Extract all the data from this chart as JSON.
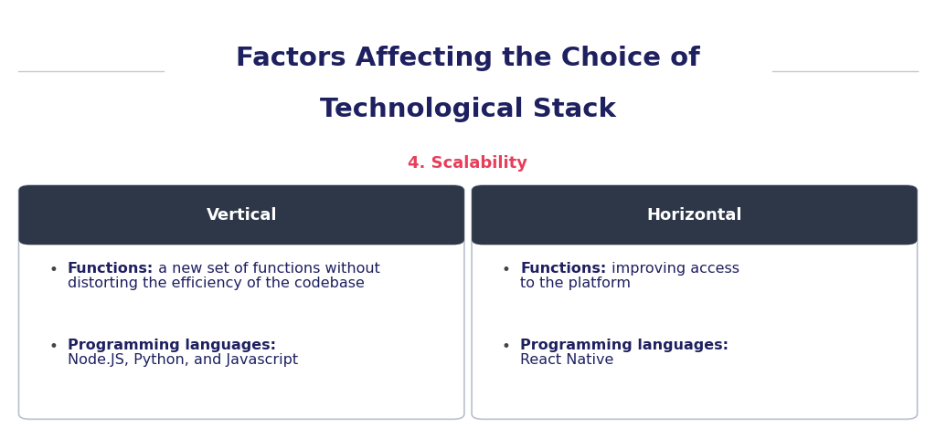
{
  "title_line1": "Factors Affecting the Choice of",
  "title_line2": "Technological Stack",
  "title_color": "#1e2060",
  "subtitle": "4. Scalability",
  "subtitle_color": "#e83e5a",
  "background_color": "#ffffff",
  "divider_color": "#c8c8c8",
  "header_bg_color": "#2d3748",
  "header_text_color": "#ffffff",
  "box_border_color": "#b8c0cc",
  "box_bg_color": "#ffffff",
  "left_header": "Vertical",
  "right_header": "Horizontal",
  "bullet_bold_color": "#1e2060",
  "normal_text_color": "#1e2060",
  "title_fontsize": 21,
  "subtitle_fontsize": 13,
  "header_fontsize": 13,
  "body_fontsize": 11.5
}
